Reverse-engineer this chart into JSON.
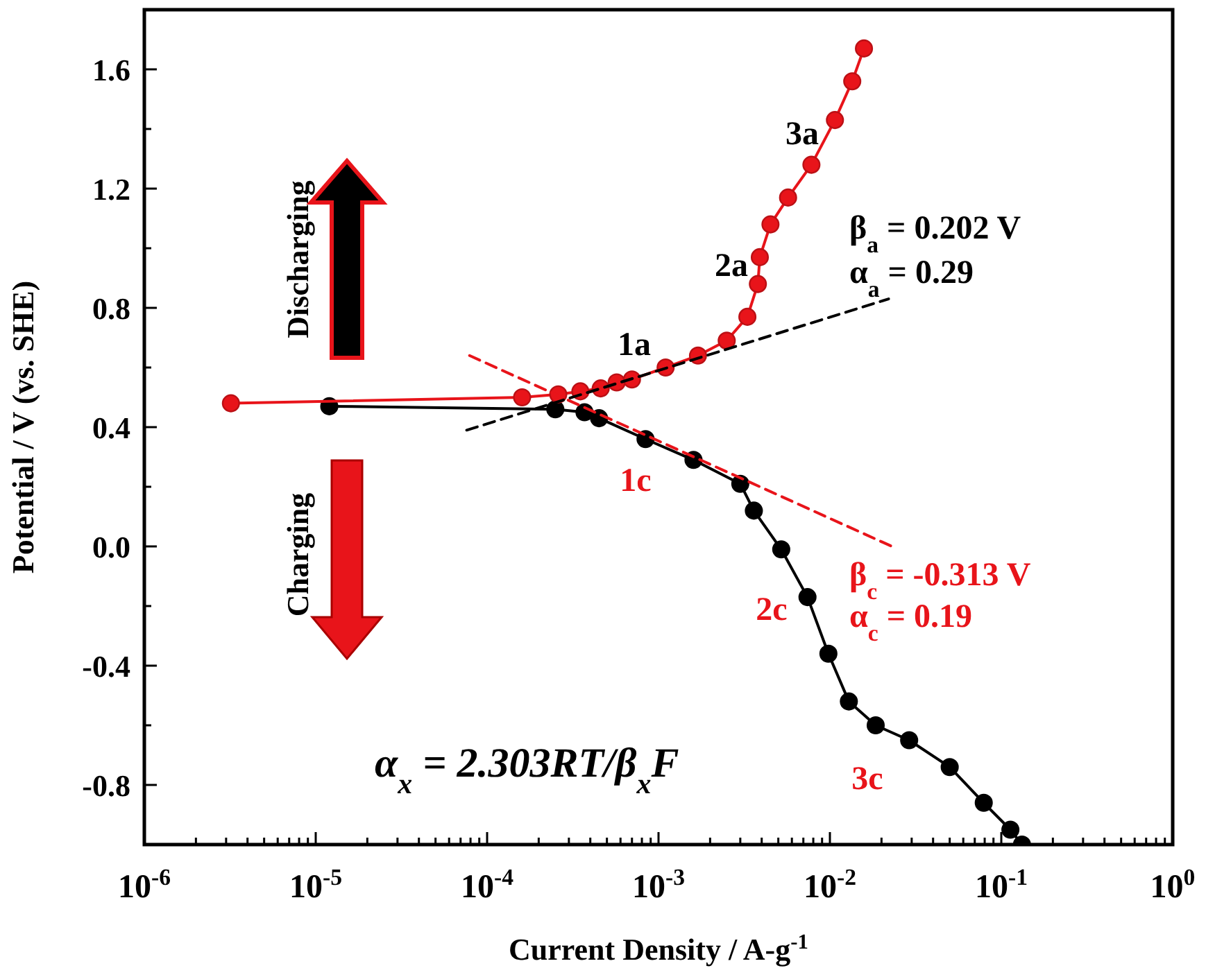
{
  "chart_data": {
    "type": "line",
    "xlabel": "Current Density  / A-g$^{-1}$",
    "ylabel": "Potential / V (vs. SHE)",
    "log": "x",
    "grid": false,
    "xlim": [
      1e-06,
      1
    ],
    "ylim": [
      -1.0,
      1.8
    ],
    "xticks": [
      {
        "value": 1e-06,
        "label": "10$^{-6}$"
      },
      {
        "value": 2e-06,
        "label": null
      },
      {
        "value": 3e-06,
        "label": null
      },
      {
        "value": 4e-06,
        "label": null
      },
      {
        "value": 5e-06,
        "label": null
      },
      {
        "value": 6e-06,
        "label": null
      },
      {
        "value": 7e-06,
        "label": null
      },
      {
        "value": 8e-06,
        "label": null
      },
      {
        "value": 9e-06,
        "label": null
      },
      {
        "value": 1e-05,
        "label": "10$^{-5}$"
      },
      {
        "value": 2e-05,
        "label": null
      },
      {
        "value": 3e-05,
        "label": null
      },
      {
        "value": 4e-05,
        "label": null
      },
      {
        "value": 5e-05,
        "label": null
      },
      {
        "value": 6e-05,
        "label": null
      },
      {
        "value": 7e-05,
        "label": null
      },
      {
        "value": 8e-05,
        "label": null
      },
      {
        "value": 9e-05,
        "label": null
      },
      {
        "value": 0.0001,
        "label": "10$^{-4}$"
      },
      {
        "value": 0.0002,
        "label": null
      },
      {
        "value": 0.0003,
        "label": null
      },
      {
        "value": 0.0004,
        "label": null
      },
      {
        "value": 0.0005,
        "label": null
      },
      {
        "value": 0.0006,
        "label": null
      },
      {
        "value": 0.0007,
        "label": null
      },
      {
        "value": 0.0008,
        "label": null
      },
      {
        "value": 0.0009,
        "label": null
      },
      {
        "value": 0.001,
        "label": "10$^{-3}$"
      },
      {
        "value": 0.002,
        "label": null
      },
      {
        "value": 0.003,
        "label": null
      },
      {
        "value": 0.004,
        "label": null
      },
      {
        "value": 0.005,
        "label": null
      },
      {
        "value": 0.006,
        "label": null
      },
      {
        "value": 0.007,
        "label": null
      },
      {
        "value": 0.008,
        "label": null
      },
      {
        "value": 0.009,
        "label": null
      },
      {
        "value": 0.01,
        "label": "10$^{-2}$"
      },
      {
        "value": 0.02,
        "label": null
      },
      {
        "value": 0.03,
        "label": null
      },
      {
        "value": 0.04,
        "label": null
      },
      {
        "value": 0.05,
        "label": null
      },
      {
        "value": 0.06,
        "label": null
      },
      {
        "value": 0.07,
        "label": null
      },
      {
        "value": 0.08,
        "label": null
      },
      {
        "value": 0.09,
        "label": null
      },
      {
        "value": 0.1,
        "label": "10$^{-1}$"
      },
      {
        "value": 0.2,
        "label": null
      },
      {
        "value": 0.3,
        "label": null
      },
      {
        "value": 0.4,
        "label": null
      },
      {
        "value": 0.5,
        "label": null
      },
      {
        "value": 0.6,
        "label": null
      },
      {
        "value": 0.7,
        "label": null
      },
      {
        "value": 0.8,
        "label": null
      },
      {
        "value": 0.9,
        "label": null
      },
      {
        "value": 1,
        "label": "10$^{0}$"
      }
    ],
    "yticks": [
      {
        "value": -1.0,
        "label": null
      },
      {
        "value": -0.8,
        "label": "-0.8"
      },
      {
        "value": -0.6,
        "label": null
      },
      {
        "value": -0.4,
        "label": "-0.4"
      },
      {
        "value": -0.2,
        "label": null
      },
      {
        "value": 0.0,
        "label": "0.0"
      },
      {
        "value": 0.2,
        "label": null
      },
      {
        "value": 0.4,
        "label": "0.4"
      },
      {
        "value": 0.6,
        "label": null
      },
      {
        "value": 0.8,
        "label": "0.8"
      },
      {
        "value": 1.0,
        "label": null
      },
      {
        "value": 1.2,
        "label": "1.2"
      },
      {
        "value": 1.4,
        "label": null
      },
      {
        "value": 1.6,
        "label": "1.6"
      }
    ],
    "series": [
      {
        "color": "#000000",
        "marker": "circle",
        "line_style": "solid",
        "x": [
          1.2e-05,
          0.00025,
          0.00037,
          0.00045,
          0.00084,
          0.0016,
          0.003,
          0.0036,
          0.0052,
          0.0074,
          0.0098,
          0.0129,
          0.0185,
          0.029,
          0.05,
          0.079,
          0.113,
          0.132
        ],
        "values": [
          0.47,
          0.46,
          0.45,
          0.43,
          0.36,
          0.29,
          0.21,
          0.12,
          -0.01,
          -0.17,
          -0.36,
          -0.52,
          -0.6,
          -0.65,
          -0.74,
          -0.86,
          -0.95,
          -1.0
        ]
      },
      {
        "color": "#e8141a",
        "marker": "circle",
        "line_style": "solid",
        "x": [
          3.2e-06,
          0.00016,
          0.00026,
          0.00035,
          0.00046,
          0.00057,
          0.0007,
          0.0011,
          0.0017,
          0.0025,
          0.0033,
          0.0038,
          0.0039,
          0.0045,
          0.0057,
          0.0078,
          0.0107,
          0.0135,
          0.0158
        ],
        "values": [
          0.48,
          0.5,
          0.51,
          0.52,
          0.53,
          0.55,
          0.56,
          0.6,
          0.64,
          0.69,
          0.77,
          0.88,
          0.97,
          1.08,
          1.17,
          1.28,
          1.43,
          1.56,
          1.67
        ]
      },
      {
        "color": "#000000",
        "marker": "none",
        "line_style": "dashed",
        "x": [
          7.6e-05,
          0.022
        ],
        "values": [
          0.39,
          0.83
        ]
      },
      {
        "color": "#e8141a",
        "marker": "none",
        "line_style": "dashed",
        "x": [
          7.9e-05,
          0.023
        ],
        "values": [
          0.64,
          0.0
        ]
      }
    ],
    "annotations": [
      "1a",
      "2a",
      "3a",
      "β$_{a}$ = 0.202 V",
      "α$_{a}$ = 0.29",
      "1c",
      "2c",
      "3c",
      "β$_{c}$ = -0.313 V",
      "α$_{c}$ = 0.19",
      "Discharging",
      "Charging",
      "α$_{x}$ = 2.303RT/β$_{x}$F"
    ]
  }
}
